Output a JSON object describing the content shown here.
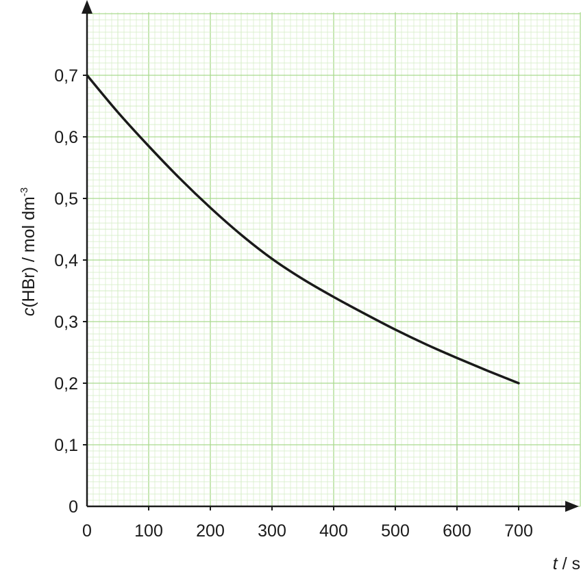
{
  "chart_data": {
    "type": "line",
    "xlabel_var": "t",
    "xlabel_unit": "s",
    "ylabel_var": "c",
    "ylabel_rest": "(HBr) / mol dm",
    "ylabel_exp": "-3",
    "xlim": [
      0,
      800
    ],
    "ylim": [
      0,
      0.8
    ],
    "x_ticks": [
      0,
      100,
      200,
      300,
      400,
      500,
      600,
      700
    ],
    "x_tick_labels": [
      "0",
      "100",
      "200",
      "300",
      "400",
      "500",
      "600",
      "700"
    ],
    "y_ticks": [
      0,
      0.1,
      0.2,
      0.3,
      0.4,
      0.5,
      0.6,
      0.7
    ],
    "y_tick_labels": [
      "0",
      "0,1",
      "0,2",
      "0,3",
      "0,4",
      "0,5",
      "0,6",
      "0,7"
    ],
    "grid": true,
    "colors": {
      "grid_minor": "#d3ecc3",
      "grid_major": "#a9d98d",
      "axis": "#1a1a1a",
      "curve": "#1a1a1a"
    },
    "series": [
      {
        "x": [
          0,
          50,
          100,
          150,
          200,
          250,
          300,
          350,
          400,
          450,
          500,
          550,
          600,
          650,
          700
        ],
        "y": [
          0.7,
          0.64,
          0.585,
          0.533,
          0.485,
          0.441,
          0.402,
          0.369,
          0.34,
          0.313,
          0.287,
          0.263,
          0.241,
          0.22,
          0.2
        ]
      }
    ]
  }
}
